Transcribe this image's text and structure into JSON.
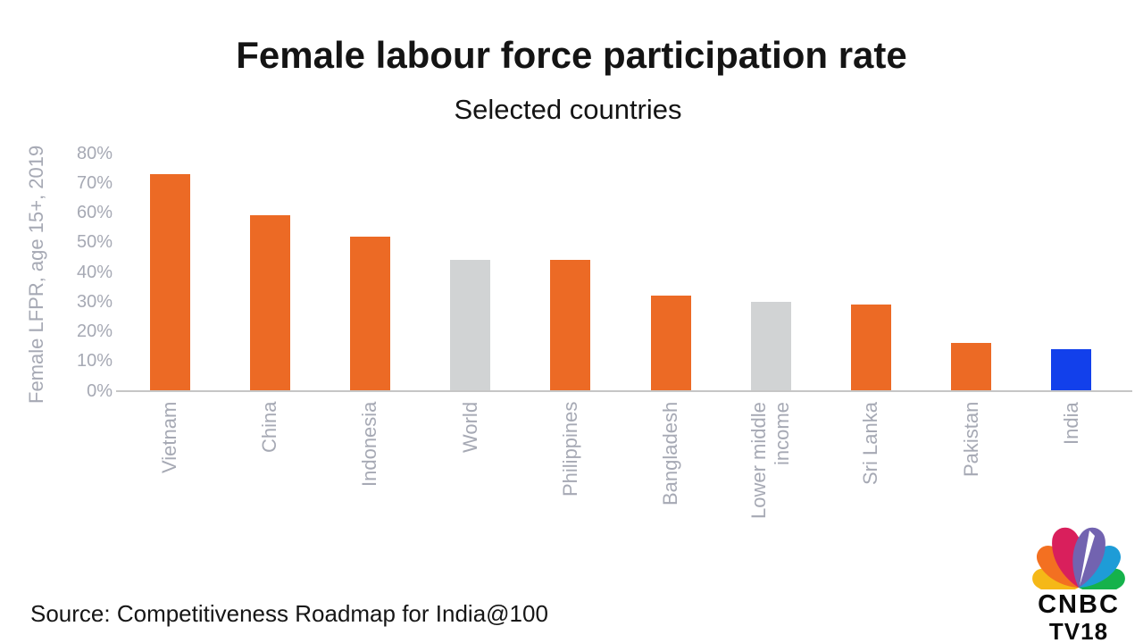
{
  "source": {
    "text": "Source: Competitiveness Roadmap for India@100"
  },
  "logo": {
    "line1": "CNBC",
    "line2": "TV18",
    "feather_colors": {
      "yellow": "#F5B817",
      "orange": "#F37021",
      "red": "#D91F5C",
      "purple": "#7263B0",
      "blue": "#1E9CD7",
      "green": "#15B24B"
    }
  },
  "colors": {
    "bar_orange": "#EC6A25",
    "bar_gray": "#D1D3D4",
    "bar_blue": "#1240EB",
    "axis_text": "#A6A9B4",
    "axis_line": "#C6C6C6"
  },
  "chart_data": {
    "type": "bar",
    "title": "Female labour force participation rate",
    "subtitle": "Selected countries",
    "ylabel": "Female LFPR, age 15+, 2019",
    "xlabel": "",
    "categories": [
      "Vietnam",
      "China",
      "Indonesia",
      "World",
      "Philippines",
      "Bangladesh",
      "Lower middle income",
      "Sri Lanka",
      "Pakistan",
      "India"
    ],
    "values": [
      73,
      59,
      52,
      44,
      44,
      32,
      30,
      29,
      16,
      14
    ],
    "unit": "%",
    "bar_colors": [
      "#EC6A25",
      "#EC6A25",
      "#EC6A25",
      "#D1D3D4",
      "#EC6A25",
      "#EC6A25",
      "#D1D3D4",
      "#EC6A25",
      "#EC6A25",
      "#1240EB"
    ],
    "yticks": [
      "0%",
      "10%",
      "20%",
      "30%",
      "40%",
      "50%",
      "60%",
      "70%",
      "80%"
    ],
    "ylim": [
      0,
      80
    ],
    "grid": false,
    "legend": "none"
  }
}
